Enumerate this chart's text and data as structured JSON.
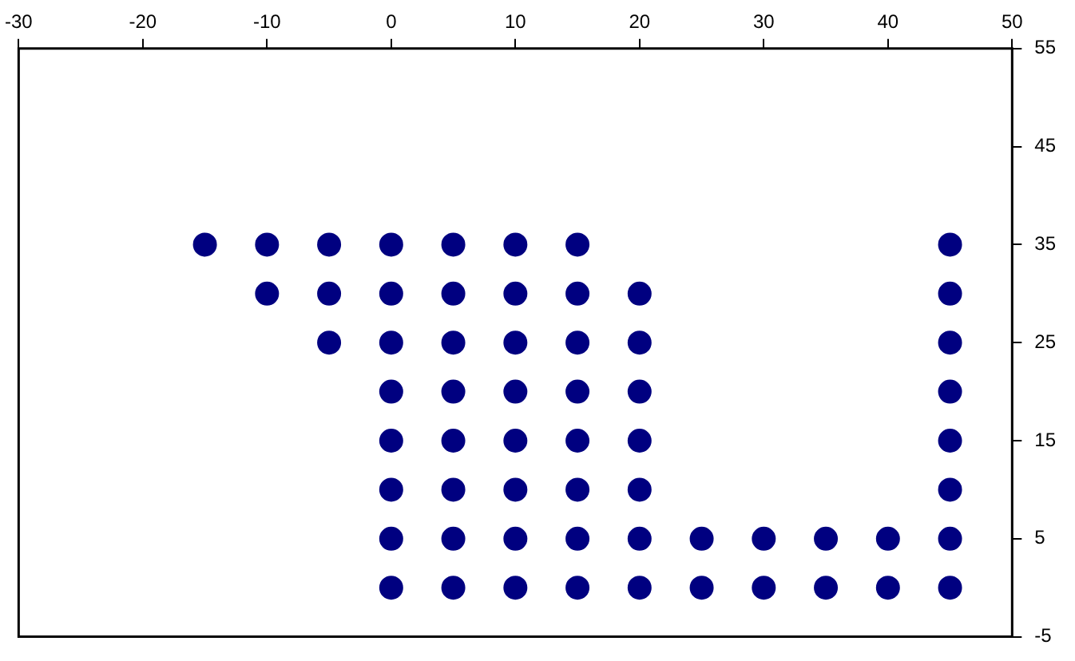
{
  "chart_data": {
    "type": "scatter",
    "series": [
      {
        "color": "#000080",
        "x": [
          -15,
          -10,
          -5,
          0,
          5,
          10,
          15,
          45,
          -10,
          -5,
          0,
          5,
          10,
          15,
          20,
          45,
          -5,
          0,
          5,
          10,
          15,
          20,
          45,
          0,
          5,
          10,
          15,
          20,
          45,
          0,
          5,
          10,
          15,
          20,
          45,
          0,
          5,
          10,
          15,
          20,
          45,
          0,
          5,
          10,
          15,
          20,
          25,
          30,
          35,
          40,
          45,
          0,
          5,
          10,
          15,
          20,
          25,
          30,
          35,
          40,
          45
        ],
        "values": [
          35,
          35,
          35,
          35,
          35,
          35,
          35,
          35,
          30,
          30,
          30,
          30,
          30,
          30,
          30,
          30,
          25,
          25,
          25,
          25,
          25,
          25,
          25,
          20,
          20,
          20,
          20,
          20,
          20,
          15,
          15,
          15,
          15,
          15,
          15,
          10,
          10,
          10,
          10,
          10,
          10,
          5,
          5,
          5,
          5,
          5,
          5,
          5,
          5,
          5,
          5,
          0,
          0,
          0,
          0,
          0,
          0,
          0,
          0,
          0,
          0
        ]
      }
    ],
    "xlim": [
      -30,
      50
    ],
    "xticks": [
      -30,
      -20,
      -10,
      0,
      10,
      20,
      30,
      40,
      50
    ],
    "ylim": [
      -5,
      55
    ],
    "yticks": [
      -5,
      5,
      15,
      25,
      35,
      45,
      55
    ],
    "marker": "circle",
    "grid": false,
    "legend": false
  }
}
